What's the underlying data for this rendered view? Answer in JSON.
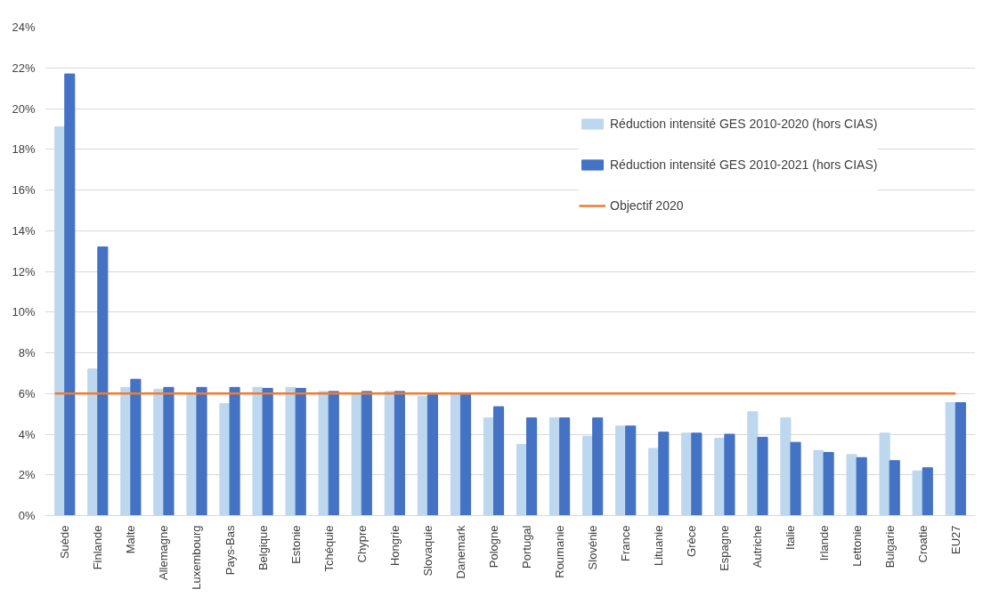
{
  "chart_data": {
    "type": "bar",
    "categories": [
      "Suède",
      "Finlande",
      "Malte",
      "Allemagne",
      "Luxembourg",
      "Pays-Bas",
      "Belgique",
      "Estonie",
      "Tchéquie",
      "Chypre",
      "Hongrie",
      "Slovaquie",
      "Danemark",
      "Pologne",
      "Portugal",
      "Roumanie",
      "Slovénie",
      "France",
      "Lituanie",
      "Grèce",
      "Espagne",
      "Autriche",
      "Italie",
      "Irlande",
      "Lettonie",
      "Bulgarie",
      "Croatie",
      "EU27"
    ],
    "series": [
      {
        "name": "Réduction intensité GES 2010-2020 (hors CIAS)",
        "color": "#bdd7ee",
        "values": [
          19.1,
          7.2,
          6.3,
          6.2,
          6.0,
          5.5,
          6.3,
          6.3,
          6.1,
          6.0,
          6.1,
          5.85,
          5.95,
          4.8,
          3.5,
          4.8,
          3.9,
          4.4,
          3.3,
          4.05,
          3.8,
          5.1,
          4.8,
          3.2,
          3.0,
          4.05,
          2.2,
          5.55
        ]
      },
      {
        "name": "Réduction intensité GES 2010-2021 (hors CIAS)",
        "color": "#4472c4",
        "values": [
          21.7,
          13.2,
          6.7,
          6.3,
          6.3,
          6.3,
          6.25,
          6.25,
          6.1,
          6.1,
          6.1,
          5.95,
          5.95,
          5.35,
          4.8,
          4.8,
          4.8,
          4.4,
          4.1,
          4.05,
          4.0,
          3.85,
          3.6,
          3.1,
          2.85,
          2.7,
          2.35,
          5.55
        ]
      }
    ],
    "ref_lines": [
      {
        "axis": "y",
        "value": 6,
        "label": "Objectif 2020",
        "color": "#ed7d31",
        "line_style": "solid"
      }
    ],
    "ylim": [
      0,
      24
    ],
    "yticks": [
      {
        "value": 0,
        "label": "0%"
      },
      {
        "value": 2,
        "label": "2%"
      },
      {
        "value": 4,
        "label": "4%"
      },
      {
        "value": 6,
        "label": "6%"
      },
      {
        "value": 8,
        "label": "8%"
      },
      {
        "value": 10,
        "label": "10%"
      },
      {
        "value": 12,
        "label": "12%"
      },
      {
        "value": 14,
        "label": "14%"
      },
      {
        "value": 16,
        "label": "16%"
      },
      {
        "value": 18,
        "label": "18%"
      },
      {
        "value": 20,
        "label": "20%"
      },
      {
        "value": 22,
        "label": "22%"
      },
      {
        "value": 24,
        "label": "24%"
      }
    ],
    "grid": "y",
    "legend": "right"
  }
}
